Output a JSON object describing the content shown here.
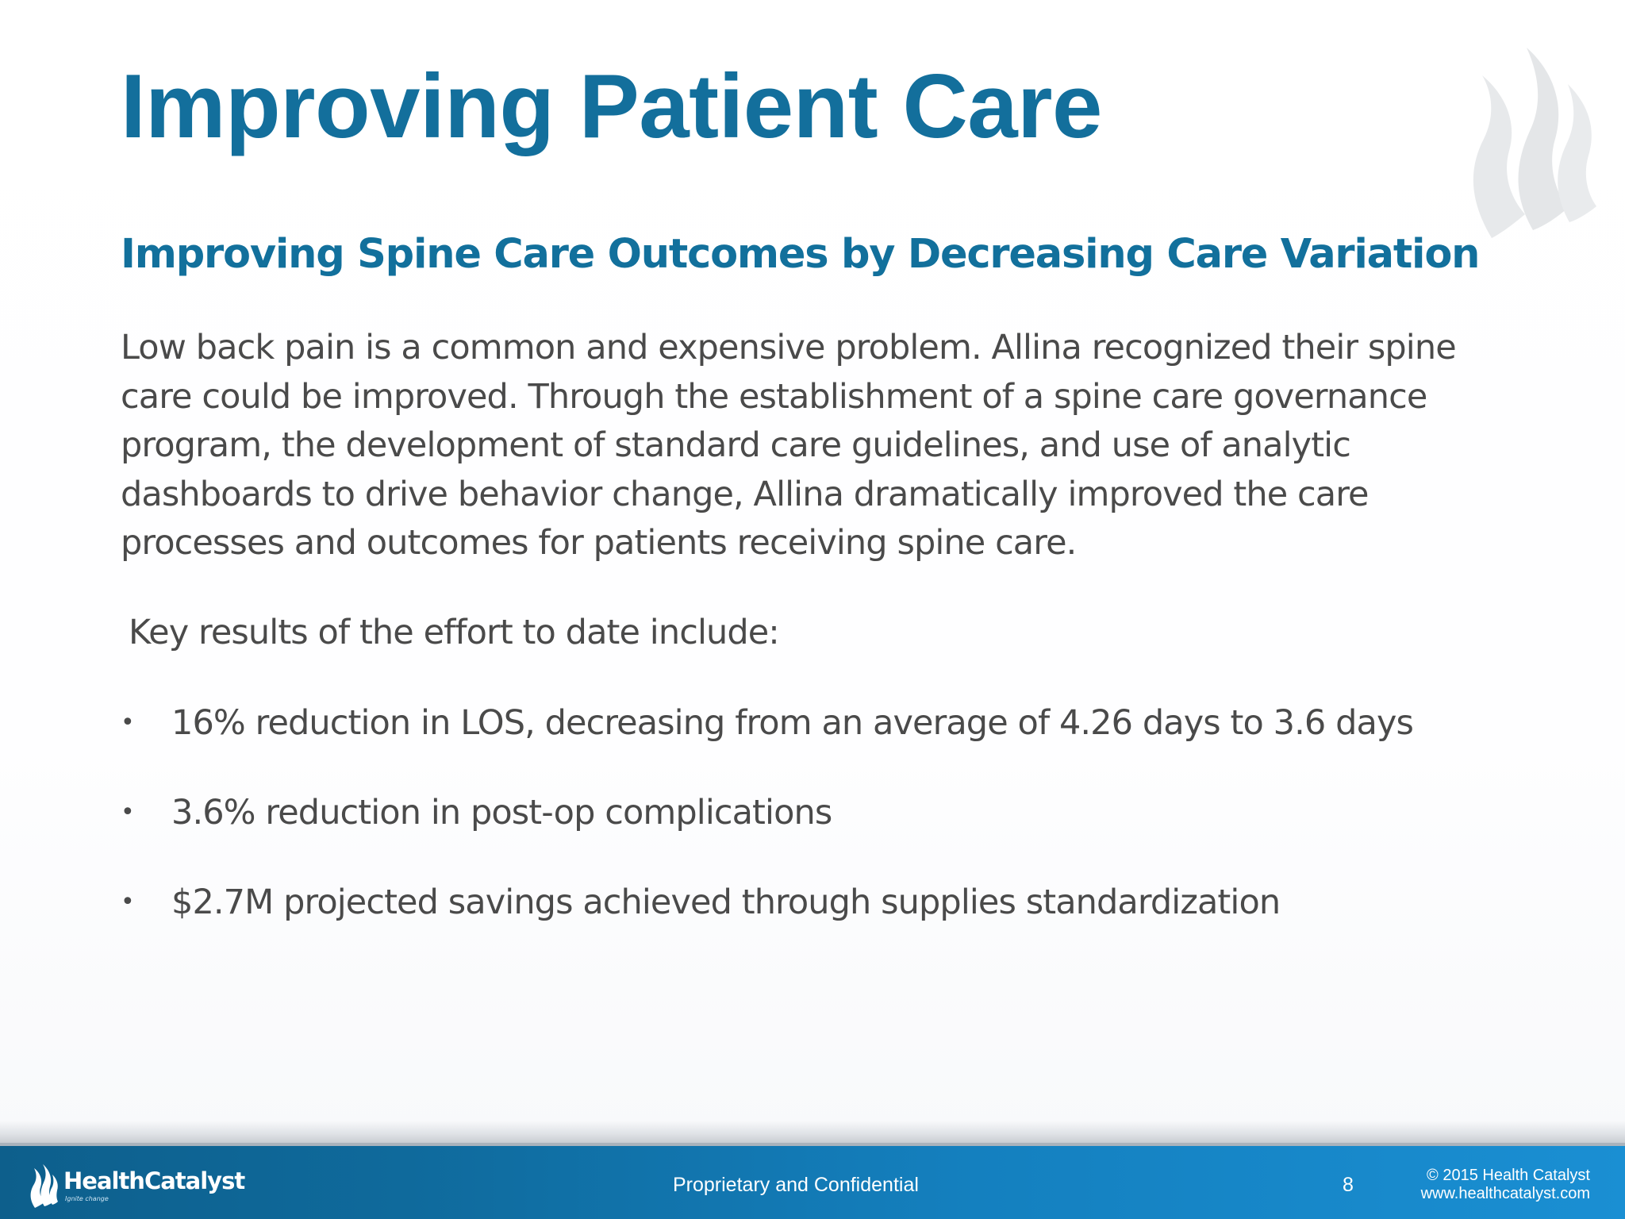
{
  "slide": {
    "title": "Improving Patient Care",
    "subtitle": "Improving Spine Care Outcomes by Decreasing Care Variation",
    "body": "Low back pain is a common and expensive problem. Allina recognized their spine care could be improved. Through the establishment of a spine care governance program, the development of standard care guidelines, and use of analytic dashboards to drive behavior change, Allina dramatically improved the care processes and outcomes for patients receiving spine care.",
    "key_results_intro": "Key results of the effort to date include:",
    "bullets": [
      "16% reduction in LOS, decreasing from an average of 4.26 days to 3.6 days",
      "3.6% reduction in post-op complications",
      "$2.7M projected savings achieved through supplies standardization"
    ],
    "bullet_glyph": "•",
    "watermark_icon": "flame-watermark-icon"
  },
  "footer": {
    "logo_name": "HealthCatalyst",
    "logo_tagline": "Ignite change",
    "logo_icon": "flame-icon",
    "center_text": "Proprietary and Confidential",
    "page_number": "8",
    "copyright_line1": "© 2015 Health Catalyst",
    "copyright_line2": "www.healthcatalyst.com"
  },
  "colors": {
    "title": "#136f9c",
    "body_text": "#4a4a4a",
    "footer_start": "#0d5f8c",
    "footer_end": "#1a8fd3",
    "watermark": "#e6e8ea"
  }
}
